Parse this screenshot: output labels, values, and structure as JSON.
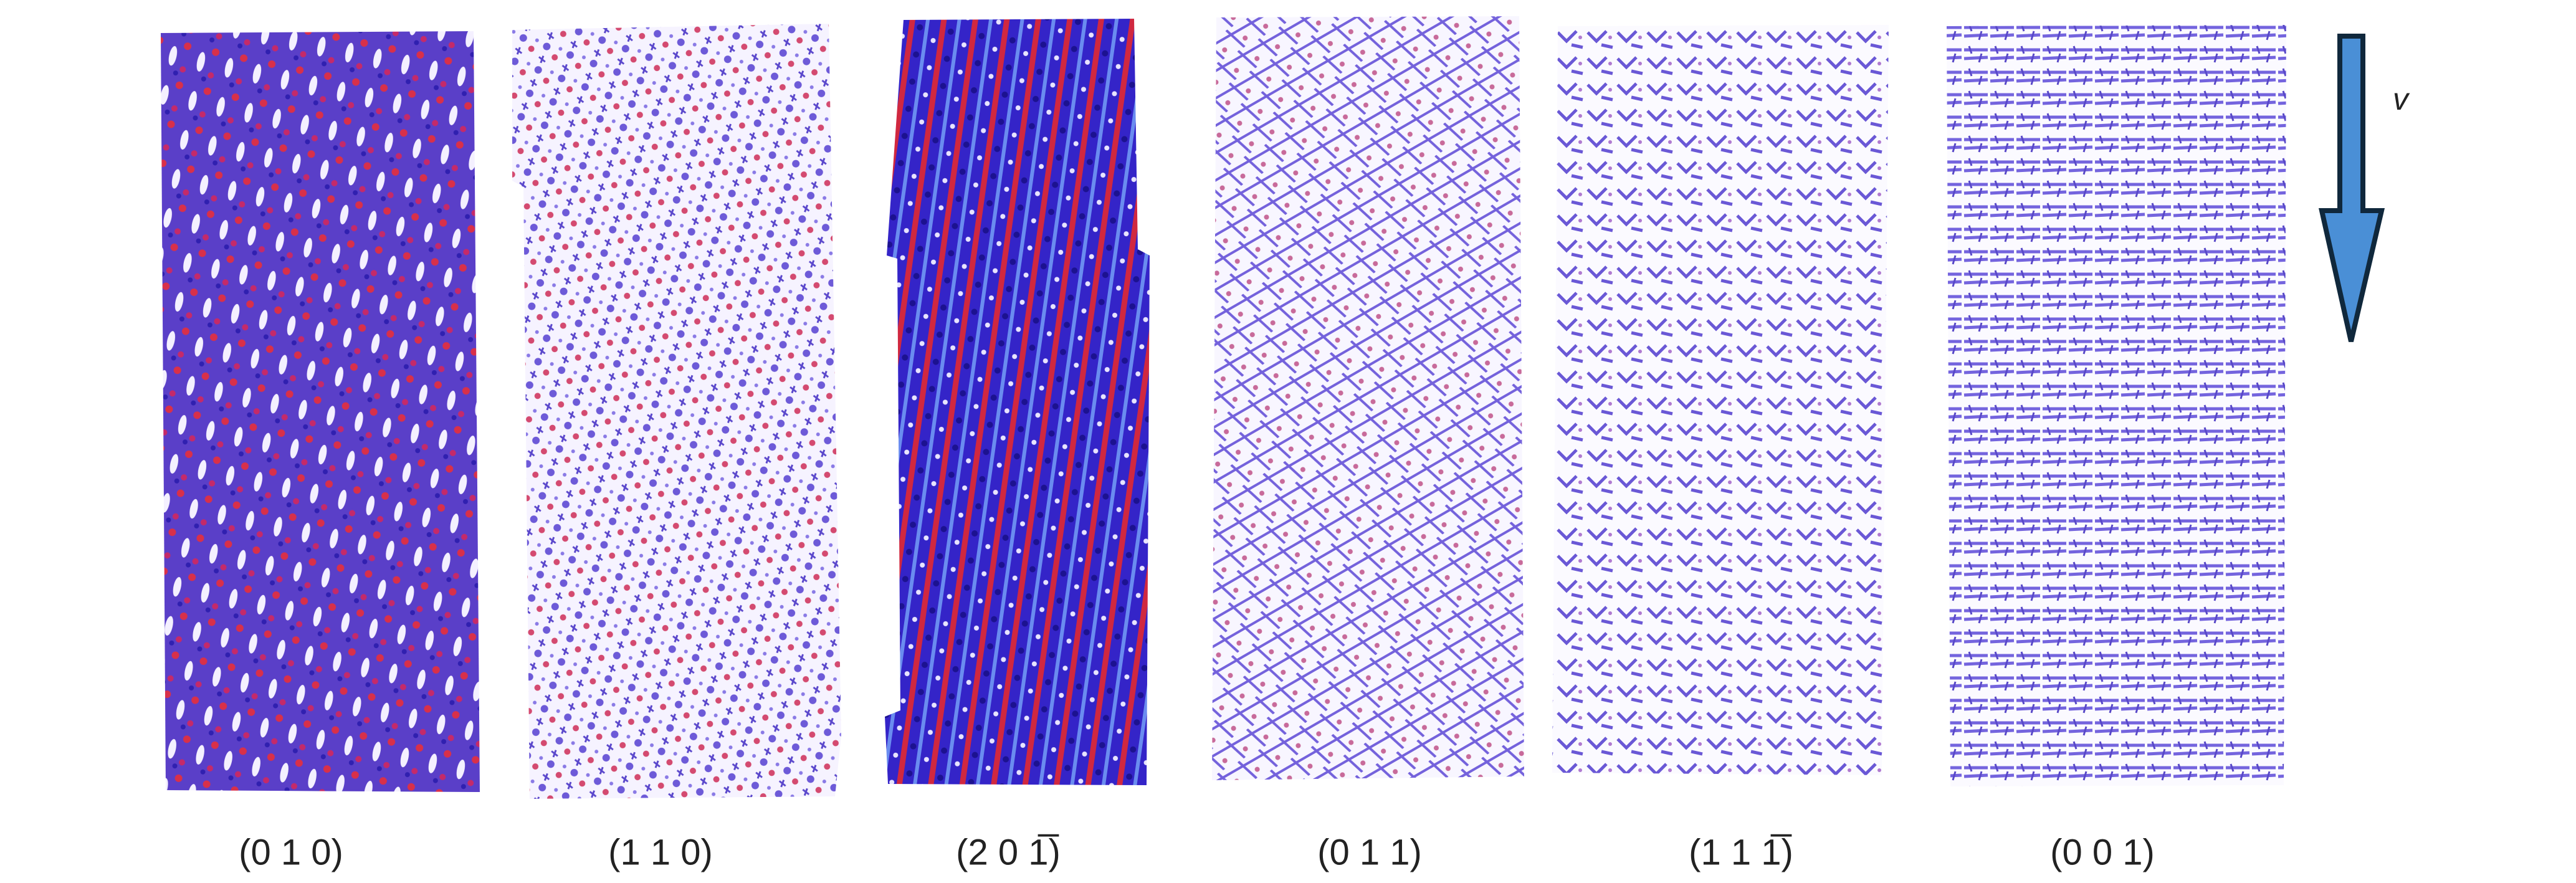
{
  "panels": [
    {
      "label": "(0 1 0)"
    },
    {
      "label": "(1 1 0)"
    },
    {
      "label": "(2 0 1̅)"
    },
    {
      "label": "(0 1 1)"
    },
    {
      "label": "(1 1 1̅)"
    },
    {
      "label": "(0 0 1)"
    }
  ],
  "arrow_label": "v"
}
